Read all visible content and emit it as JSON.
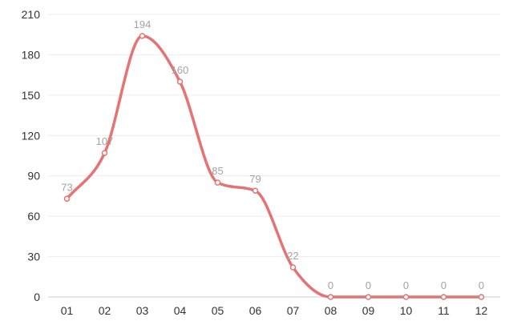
{
  "chart_data": {
    "type": "line",
    "smooth": true,
    "title": "",
    "xlabel": "",
    "ylabel": "",
    "categories": [
      "01",
      "02",
      "03",
      "04",
      "05",
      "06",
      "07",
      "08",
      "09",
      "10",
      "11",
      "12"
    ],
    "series": [
      {
        "values": [
          73,
          107,
          194,
          160,
          85,
          79,
          22,
          0,
          0,
          0,
          0,
          0
        ],
        "color": "#e57373"
      }
    ],
    "ylim": [
      0,
      210
    ],
    "yticks": [
      0,
      30,
      60,
      90,
      120,
      150,
      180,
      210
    ],
    "grid": true,
    "legend": "none",
    "point_fill": "#ffffff",
    "label_color": "#a3a3a3"
  }
}
